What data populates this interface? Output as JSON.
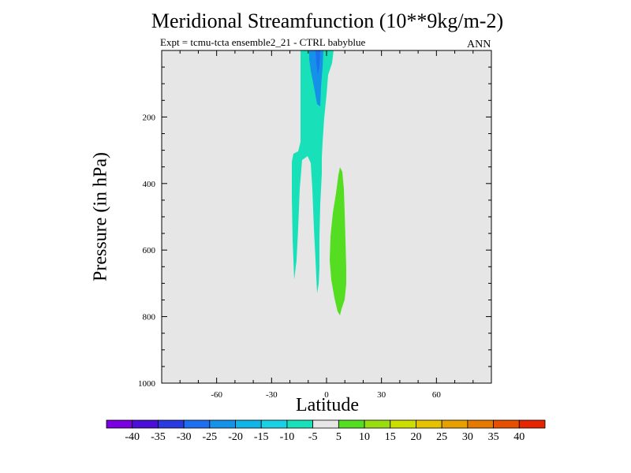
{
  "title": "Meridional Streamfunction (10**9kg/m-2)",
  "subtitle": "Expt = tcmu-tcta  ensemble2_21 - CTRL babyblue",
  "season": "ANN",
  "chart_data": {
    "type": "contour",
    "xlabel": "Latitude",
    "ylabel": "Pressure (in hPa)",
    "xlim": [
      -90,
      90
    ],
    "ylim": [
      1000,
      0
    ],
    "xticks": [
      -60,
      -30,
      0,
      30,
      60
    ],
    "yticks": [
      200,
      400,
      600,
      800,
      1000
    ],
    "colorbar": {
      "labels": [
        "-40",
        "-35",
        "-30",
        "-25",
        "-20",
        "-15",
        "-10",
        "-5",
        "5",
        "10",
        "15",
        "20",
        "25",
        "30",
        "35",
        "40"
      ],
      "colors": [
        "#7a00e0",
        "#4a10d8",
        "#2a3ae0",
        "#1e6ef0",
        "#1592e8",
        "#10b4e6",
        "#1ad0e4",
        "#18e0b8",
        "#e6e6e6",
        "#55dd22",
        "#99dd11",
        "#ccdd00",
        "#e5c300",
        "#e6a100",
        "#e67a00",
        "#e65000",
        "#e62400"
      ]
    },
    "features": [
      {
        "name": "negative-column",
        "level_range": [
          -10,
          -5
        ],
        "lat_range": [
          -18,
          4
        ],
        "pressure_range": [
          0,
          690
        ]
      },
      {
        "name": "negative-core",
        "level_range": [
          -15,
          -10
        ],
        "lat_range": [
          -4,
          0
        ],
        "pressure_range": [
          0,
          130
        ]
      },
      {
        "name": "positive-lobe",
        "level_range": [
          5,
          10
        ],
        "lat_range": [
          3,
          12
        ],
        "pressure_range": [
          345,
          800
        ]
      }
    ]
  }
}
